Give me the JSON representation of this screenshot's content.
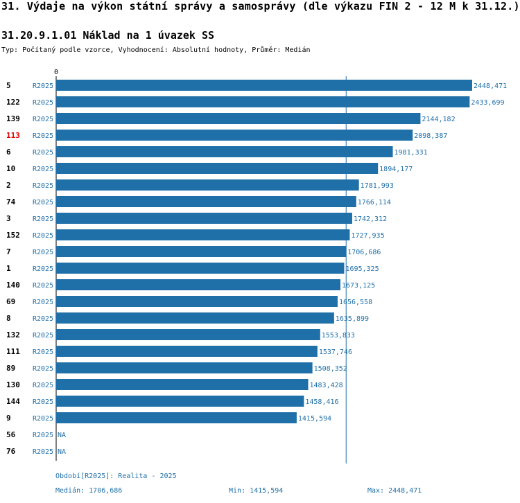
{
  "page": {
    "title": "31. Výdaje na výkon státní správy a samosprávy (dle výkazu FIN 2 - 12 M k 31.12.)",
    "chart_title": "31.20.9.1.01 Náklad na 1 úvazek SS",
    "subtitle": "Typ: Počítaný podle vzorce, Vyhodnocení: Absolutní hodnoty, Průměr: Medián"
  },
  "colors": {
    "bar": "#1f6fa8",
    "highlight_id": "#e00000",
    "median_line": "#1f6fa8"
  },
  "chart_data": {
    "type": "bar",
    "orientation": "horizontal",
    "axis_zero_label": "0",
    "xlim": [
      0,
      2448.471
    ],
    "rows": [
      {
        "id": "5",
        "period": "R2025",
        "value": 2448.471,
        "label": "2448,471",
        "highlight": false
      },
      {
        "id": "122",
        "period": "R2025",
        "value": 2433.699,
        "label": "2433,699",
        "highlight": false
      },
      {
        "id": "139",
        "period": "R2025",
        "value": 2144.182,
        "label": "2144,182",
        "highlight": false
      },
      {
        "id": "113",
        "period": "R2025",
        "value": 2098.387,
        "label": "2098,387",
        "highlight": true
      },
      {
        "id": "6",
        "period": "R2025",
        "value": 1981.331,
        "label": "1981,331",
        "highlight": false
      },
      {
        "id": "10",
        "period": "R2025",
        "value": 1894.177,
        "label": "1894,177",
        "highlight": false
      },
      {
        "id": "2",
        "period": "R2025",
        "value": 1781.993,
        "label": "1781,993",
        "highlight": false
      },
      {
        "id": "74",
        "period": "R2025",
        "value": 1766.114,
        "label": "1766,114",
        "highlight": false
      },
      {
        "id": "3",
        "period": "R2025",
        "value": 1742.312,
        "label": "1742,312",
        "highlight": false
      },
      {
        "id": "152",
        "period": "R2025",
        "value": 1727.935,
        "label": "1727,935",
        "highlight": false
      },
      {
        "id": "7",
        "period": "R2025",
        "value": 1706.686,
        "label": "1706,686",
        "highlight": false
      },
      {
        "id": "1",
        "period": "R2025",
        "value": 1695.325,
        "label": "1695,325",
        "highlight": false
      },
      {
        "id": "140",
        "period": "R2025",
        "value": 1673.125,
        "label": "1673,125",
        "highlight": false
      },
      {
        "id": "69",
        "period": "R2025",
        "value": 1656.558,
        "label": "1656,558",
        "highlight": false
      },
      {
        "id": "8",
        "period": "R2025",
        "value": 1635.899,
        "label": "1635,899",
        "highlight": false
      },
      {
        "id": "132",
        "period": "R2025",
        "value": 1553.833,
        "label": "1553,833",
        "highlight": false
      },
      {
        "id": "111",
        "period": "R2025",
        "value": 1537.746,
        "label": "1537,746",
        "highlight": false
      },
      {
        "id": "89",
        "period": "R2025",
        "value": 1508.352,
        "label": "1508,352",
        "highlight": false
      },
      {
        "id": "130",
        "period": "R2025",
        "value": 1483.428,
        "label": "1483,428",
        "highlight": false
      },
      {
        "id": "144",
        "period": "R2025",
        "value": 1458.416,
        "label": "1458,416",
        "highlight": false
      },
      {
        "id": "9",
        "period": "R2025",
        "value": 1415.594,
        "label": "1415,594",
        "highlight": false
      },
      {
        "id": "56",
        "period": "R2025",
        "value": null,
        "label": "NA",
        "highlight": false
      },
      {
        "id": "76",
        "period": "R2025",
        "value": null,
        "label": "NA",
        "highlight": false
      }
    ],
    "median": 1706.686
  },
  "footer": {
    "period_legend": "Období[R2025]: Realita - 2025",
    "median": "Medián: 1706,686",
    "min": "Min: 1415,594",
    "max": "Max: 2448,471"
  }
}
